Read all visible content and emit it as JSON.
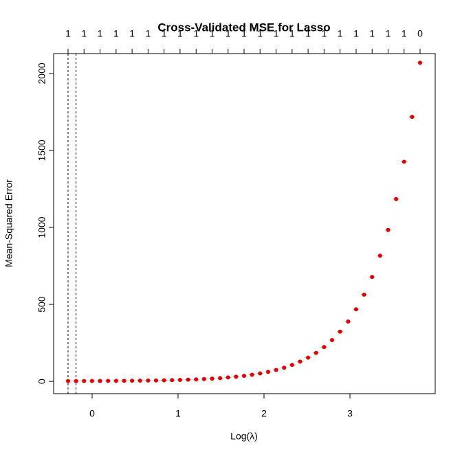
{
  "chart_data": {
    "type": "scatter",
    "title": "Cross-Validated MSE for Lasso",
    "x_label": "Log(λ)",
    "y_label": "Mean-Squared Error",
    "color": "#e00000",
    "x": [
      -0.28,
      -0.187,
      -0.094,
      -0.001,
      0.092,
      0.186,
      0.279,
      0.372,
      0.465,
      0.558,
      0.651,
      0.744,
      0.837,
      0.93,
      1.023,
      1.117,
      1.21,
      1.303,
      1.396,
      1.489,
      1.582,
      1.675,
      1.768,
      1.861,
      1.954,
      2.048,
      2.141,
      2.234,
      2.327,
      2.42,
      2.513,
      2.606,
      2.699,
      2.792,
      2.885,
      2.979,
      3.072,
      3.165,
      3.258,
      3.351,
      3.444,
      3.537,
      3.63,
      3.723,
      3.816
    ],
    "values": [
      2.1,
      2.2,
      2.3,
      2.5,
      2.7,
      3,
      3.2,
      3.6,
      4,
      4.6,
      5.2,
      5.9,
      6.8,
      7.9,
      9.2,
      10.8,
      12.7,
      15,
      17.8,
      21.2,
      25.2,
      30,
      35.9,
      42.9,
      51.4,
      61.6,
      73.9,
      88.7,
      106.6,
      128.1,
      154,
      185.2,
      222.8,
      268.1,
      322.7,
      388.4,
      467.6,
      563,
      678,
      816.4,
      983.3,
      1184.3,
      1426.4,
      1718.1,
      2069.5
    ],
    "top_axis_labels": [
      1,
      1,
      1,
      1,
      1,
      1,
      1,
      1,
      1,
      1,
      1,
      1,
      1,
      1,
      1,
      1,
      1,
      1,
      1,
      1,
      1,
      1,
      0
    ],
    "reference_lines": [
      -0.28,
      -0.187
    ],
    "xlim": [
      -0.448,
      3.992
    ],
    "ylim": [
      -80,
      2129
    ],
    "xticks": [
      0,
      1,
      2,
      3
    ],
    "yticks": [
      0,
      500,
      1000,
      1500,
      2000
    ]
  }
}
